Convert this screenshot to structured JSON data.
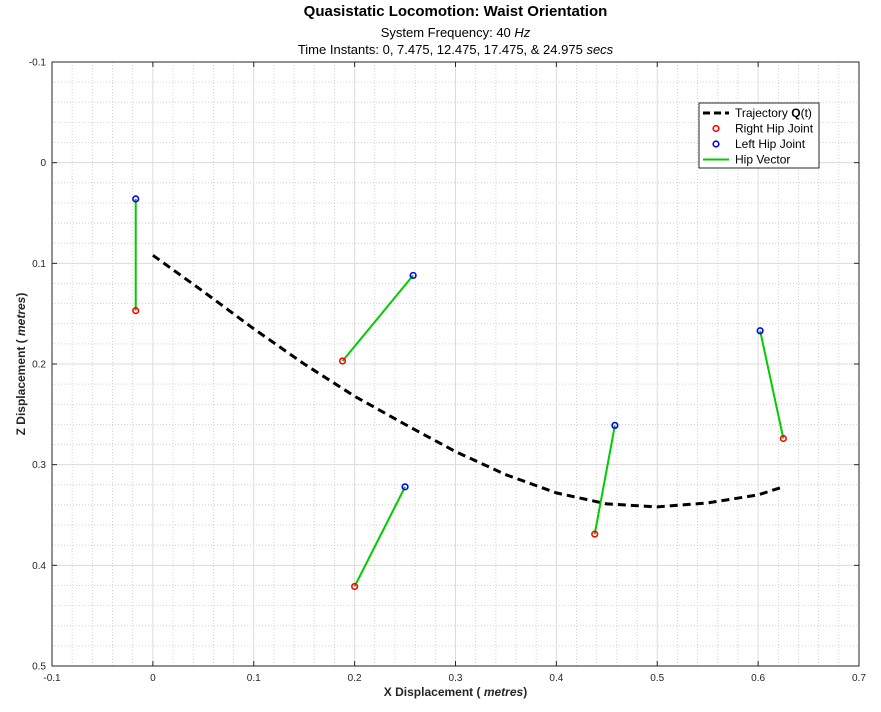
{
  "chart_data": {
    "type": "scatter",
    "title": "Quasistatic Locomotion: Waist Orientation",
    "subtitle_line1": [
      "System Frequency: 40 ",
      "Hz"
    ],
    "subtitle_line2": [
      "Time Instants: 0, 7.475, 12.475, 17.475,  & 24.975  ",
      "secs"
    ],
    "xlabel": [
      "X Displacement ( ",
      "metres",
      ")"
    ],
    "ylabel": [
      "Z Displacement ( ",
      "metres",
      ")"
    ],
    "xlim": [
      -0.1,
      0.7
    ],
    "ylim": [
      -0.1,
      0.5
    ],
    "y_reversed": true,
    "grid": true,
    "minor_grid": true,
    "xticks": [
      "-0.1",
      "0",
      "0.1",
      "0.2",
      "0.3",
      "0.4",
      "0.5",
      "0.6",
      "0.7"
    ],
    "yticks": [
      "-0.1",
      "0",
      "0.1",
      "0.2",
      "0.3",
      "0.4",
      "0.5"
    ],
    "legend_position": "top-right",
    "legend": [
      {
        "label": [
          "Trajectory ",
          "Q",
          "(t)"
        ],
        "style": "dashed-line",
        "color": "#000000"
      },
      {
        "label": [
          "Right Hip Joint"
        ],
        "style": "marker",
        "color": "#ff0000"
      },
      {
        "label": [
          "Left Hip Joint"
        ],
        "style": "marker",
        "color": "#0000ff"
      },
      {
        "label": [
          "Hip Vector"
        ],
        "style": "line",
        "color": "#00cc00"
      }
    ],
    "trajectory": {
      "x": [
        0,
        0.05,
        0.1,
        0.15,
        0.2,
        0.25,
        0.3,
        0.35,
        0.4,
        0.45,
        0.5,
        0.55,
        0.6,
        0.625
      ],
      "y": [
        0.092,
        0.128,
        0.165,
        0.2,
        0.232,
        0.26,
        0.287,
        0.31,
        0.328,
        0.339,
        0.342,
        0.338,
        0.33,
        0.322
      ]
    },
    "hip_pairs": [
      {
        "right": [
          -0.017,
          0.147
        ],
        "left": [
          -0.017,
          0.036
        ]
      },
      {
        "right": [
          0.188,
          0.197
        ],
        "left": [
          0.258,
          0.112
        ]
      },
      {
        "right": [
          0.2,
          0.421
        ],
        "left": [
          0.25,
          0.322
        ]
      },
      {
        "right": [
          0.438,
          0.369
        ],
        "left": [
          0.458,
          0.261
        ]
      },
      {
        "right": [
          0.625,
          0.274
        ],
        "left": [
          0.602,
          0.167
        ]
      }
    ],
    "colors": {
      "right": "#ff0000",
      "left": "#0000ff",
      "vector": "#00cc00",
      "trajectory": "#000000"
    }
  }
}
